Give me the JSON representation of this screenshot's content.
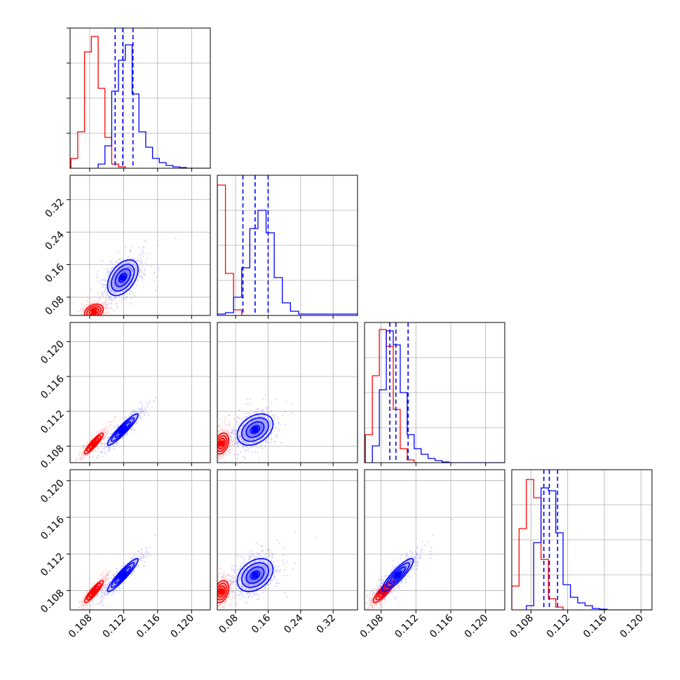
{
  "chart_data": {
    "type": "corner",
    "parameters": 4,
    "colors": {
      "red": "#ff0000",
      "blue": "#0000ff"
    },
    "grid": true,
    "axes": {
      "p0": {
        "range": [
          0.1057,
          0.1222
        ],
        "ticks": [
          "0.108",
          "0.112",
          "0.116",
          "0.120"
        ]
      },
      "p1": {
        "range": [
          0.035,
          0.38
        ],
        "ticks": [
          "0.08",
          "0.16",
          "0.24",
          "0.32"
        ]
      },
      "p2": {
        "range": [
          0.1061,
          0.1222
        ],
        "ticks": [
          "0.108",
          "0.112",
          "0.116",
          "0.120"
        ]
      },
      "p3": {
        "range": [
          0.1059,
          0.1212
        ],
        "ticks": [
          "0.108",
          "0.112",
          "0.116",
          "0.120"
        ]
      }
    },
    "series": [
      {
        "color": "red",
        "means": [
          0.1085,
          0.045,
          0.1083,
          0.1079
        ],
        "sds": [
          0.00055,
          0.009,
          0.0006,
          0.0006
        ],
        "corr": [
          [
            0,
            2,
            0.9
          ],
          [
            0,
            3,
            0.9
          ],
          [
            2,
            3,
            0.85
          ],
          [
            0,
            1,
            0.3
          ],
          [
            1,
            2,
            0.3
          ],
          [
            1,
            3,
            0.3
          ]
        ],
        "histograms": [
          {
            "bins": [
              0.1058,
              0.1066,
              0.1074,
              0.1082,
              0.109,
              0.1098,
              0.1106,
              0.1114,
              0.1122
            ],
            "counts": [
              0.07,
              0.26,
              0.83,
              0.94,
              0.57,
              0.22,
              0.03,
              0.01
            ]
          },
          {
            "bins": [
              0.035,
              0.055,
              0.075,
              0.095,
              0.115
            ],
            "counts": [
              0.93,
              0.3,
              0.04,
              0.0
            ]
          },
          {
            "bins": [
              0.1062,
              0.107,
              0.1078,
              0.1086,
              0.1094,
              0.1102,
              0.111,
              0.1118
            ],
            "counts": [
              0.2,
              0.62,
              0.95,
              0.83,
              0.38,
              0.1,
              0.02
            ]
          },
          {
            "bins": [
              0.1059,
              0.1067,
              0.1075,
              0.1083,
              0.1091,
              0.1099,
              0.1107,
              0.1115
            ],
            "counts": [
              0.17,
              0.58,
              0.93,
              0.8,
              0.36,
              0.08,
              0.02
            ]
          }
        ]
      },
      {
        "color": "blue",
        "means": [
          0.1119,
          0.128,
          0.1099,
          0.1097
        ],
        "sds": [
          0.0009,
          0.022,
          0.0009,
          0.0009
        ],
        "quantile_lines": [
          [
            0.111,
            0.1119,
            0.1131
          ],
          [
            0.098,
            0.128,
            0.16
          ],
          [
            0.109,
            0.1097,
            0.1111
          ],
          [
            0.1094,
            0.11,
            0.1109
          ]
        ],
        "corr": [
          [
            0,
            2,
            0.93
          ],
          [
            0,
            3,
            0.93
          ],
          [
            2,
            3,
            0.88
          ],
          [
            0,
            1,
            0.45
          ],
          [
            1,
            2,
            0.35
          ],
          [
            1,
            3,
            0.35
          ]
        ],
        "histograms": [
          {
            "bins": [
              0.109,
              0.1098,
              0.1106,
              0.1114,
              0.1122,
              0.113,
              0.1138,
              0.1146,
              0.1154,
              0.1162,
              0.117,
              0.1178,
              0.1186,
              0.1194,
              0.1222
            ],
            "counts": [
              0.03,
              0.16,
              0.55,
              0.77,
              0.88,
              0.53,
              0.26,
              0.15,
              0.07,
              0.04,
              0.02,
              0.01,
              0.005,
              0.0
            ]
          },
          {
            "bins": [
              0.035,
              0.055,
              0.075,
              0.095,
              0.115,
              0.135,
              0.155,
              0.175,
              0.195,
              0.215,
              0.235,
              0.38
            ],
            "counts": [
              0.01,
              0.02,
              0.13,
              0.34,
              0.62,
              0.75,
              0.59,
              0.27,
              0.09,
              0.03,
              0.01
            ]
          },
          {
            "bins": [
              0.107,
              0.1078,
              0.1086,
              0.1094,
              0.1102,
              0.111,
              0.1118,
              0.1126,
              0.1134,
              0.1142,
              0.115,
              0.1158,
              0.1222
            ],
            "counts": [
              0.12,
              0.52,
              0.94,
              0.84,
              0.5,
              0.2,
              0.1,
              0.06,
              0.03,
              0.015,
              0.005,
              0.0
            ]
          },
          {
            "bins": [
              0.1075,
              0.1083,
              0.1091,
              0.1099,
              0.1107,
              0.1115,
              0.1123,
              0.1131,
              0.1139,
              0.1147,
              0.1155,
              0.1163,
              0.1212
            ],
            "counts": [
              0.03,
              0.48,
              0.87,
              0.85,
              0.55,
              0.18,
              0.09,
              0.05,
              0.03,
              0.01,
              0.005,
              0.0
            ]
          }
        ]
      }
    ]
  }
}
